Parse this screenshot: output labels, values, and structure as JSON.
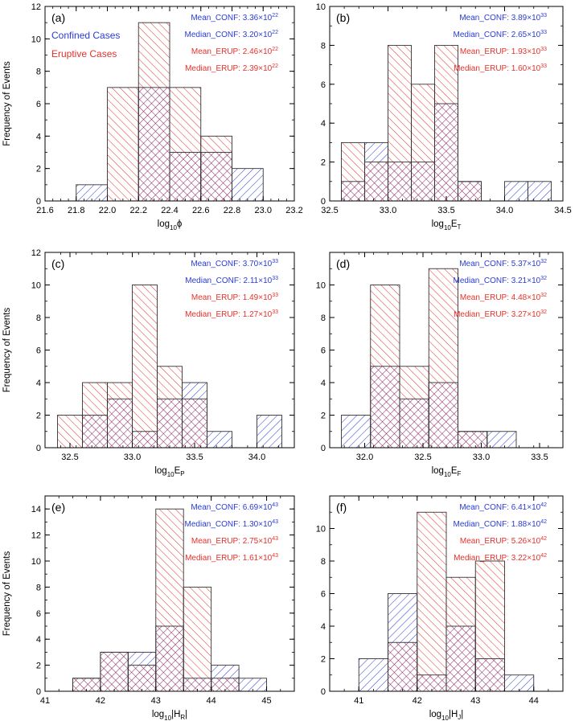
{
  "colors": {
    "confined": "#2a3bd6",
    "eruptive": "#e8302a",
    "overlap": "#8a1b5a",
    "frame": "#000000"
  },
  "legend": {
    "confined": "Confined Cases",
    "eruptive": "Eruptive Cases"
  },
  "chart_data": [
    {
      "type": "bar",
      "panel_label": "(a)",
      "xlabel": {
        "base": "log",
        "sub": "10",
        "rest": "ϕ",
        "sup": "",
        "pipes": false
      },
      "ylabel": "Frequency of Events",
      "xlim": [
        21.6,
        23.2
      ],
      "ylim": [
        0,
        12
      ],
      "xticks": [
        21.6,
        21.8,
        22.0,
        22.2,
        22.4,
        22.6,
        22.8,
        23.0,
        23.2
      ],
      "xtick_labels": [
        "21.6",
        "21.8",
        "22.0",
        "22.2",
        "22.4",
        "22.6",
        "22.8",
        "23.0",
        "23.2"
      ],
      "yticks": [
        0,
        2,
        4,
        6,
        8,
        10,
        12
      ],
      "bin_edges": [
        21.8,
        22.0,
        22.2,
        22.4,
        22.6,
        22.8,
        23.0
      ],
      "series": [
        {
          "name": "Confined Cases",
          "values": [
            1,
            0,
            7,
            3,
            3,
            2
          ]
        },
        {
          "name": "Eruptive Cases",
          "values": [
            0,
            7,
            11,
            7,
            4,
            0
          ]
        }
      ],
      "stats": [
        {
          "label": "Mean_CONF: 3.36×10",
          "exp": "22",
          "color": "confined"
        },
        {
          "label": "Median_CONF: 3.20×10",
          "exp": "22",
          "color": "confined"
        },
        {
          "label": "Mean_ERUP: 2.46×10",
          "exp": "22",
          "color": "eruptive"
        },
        {
          "label": "Median_ERUP: 2.39×10",
          "exp": "22",
          "color": "eruptive"
        }
      ],
      "show_legend": true
    },
    {
      "type": "bar",
      "panel_label": "(b)",
      "xlabel": {
        "base": "log",
        "sub": "10",
        "rest": "E",
        "sup": "T",
        "pipes": false
      },
      "ylabel": "",
      "xlim": [
        32.5,
        34.5
      ],
      "ylim": [
        0,
        10
      ],
      "xticks": [
        32.5,
        33.0,
        33.5,
        34.0,
        34.5
      ],
      "xtick_labels": [
        "32.5",
        "33.0",
        "33.5",
        "34.0",
        "34.5"
      ],
      "yticks": [
        0,
        2,
        4,
        6,
        8,
        10
      ],
      "bin_edges": [
        32.6,
        32.8,
        33.0,
        33.2,
        33.4,
        33.6,
        33.8,
        34.0,
        34.2,
        34.4
      ],
      "series": [
        {
          "name": "Confined Cases",
          "values": [
            1,
            3,
            2,
            2,
            5,
            1,
            0,
            1,
            1
          ]
        },
        {
          "name": "Eruptive Cases",
          "values": [
            3,
            2,
            8,
            6,
            8,
            1,
            0,
            0,
            0
          ]
        }
      ],
      "stats": [
        {
          "label": "Mean_CONF: 3.89×10",
          "exp": "33",
          "color": "confined"
        },
        {
          "label": "Median_CONF: 2.65×10",
          "exp": "33",
          "color": "confined"
        },
        {
          "label": "Mean_ERUP: 1.93×10",
          "exp": "33",
          "color": "eruptive"
        },
        {
          "label": "Median_ERUP: 1.60×10",
          "exp": "33",
          "color": "eruptive"
        }
      ],
      "show_legend": false
    },
    {
      "type": "bar",
      "panel_label": "(c)",
      "xlabel": {
        "base": "log",
        "sub": "10",
        "rest": "E",
        "sup": "P",
        "pipes": false
      },
      "ylabel": "Frequency of Events",
      "xlim": [
        32.3,
        34.3
      ],
      "ylim": [
        0,
        12
      ],
      "xticks": [
        32.5,
        33.0,
        33.5,
        34.0
      ],
      "xtick_labels": [
        "32.5",
        "33.0",
        "33.5",
        "34.0"
      ],
      "yticks": [
        0,
        2,
        4,
        6,
        8,
        10,
        12
      ],
      "bin_edges": [
        32.4,
        32.6,
        32.8,
        33.0,
        33.2,
        33.4,
        33.6,
        33.8,
        34.0,
        34.2
      ],
      "series": [
        {
          "name": "Confined Cases",
          "values": [
            0,
            2,
            3,
            1,
            3,
            4,
            1,
            0,
            2
          ]
        },
        {
          "name": "Eruptive Cases",
          "values": [
            2,
            4,
            4,
            10,
            5,
            3,
            0,
            0,
            0
          ]
        }
      ],
      "stats": [
        {
          "label": "Mean_CONF: 3.70×10",
          "exp": "33",
          "color": "confined"
        },
        {
          "label": "Median_CONF: 2.11×10",
          "exp": "33",
          "color": "confined"
        },
        {
          "label": "Mean_ERUP: 1.49×10",
          "exp": "33",
          "color": "eruptive"
        },
        {
          "label": "Median_ERUP: 1.27×10",
          "exp": "33",
          "color": "eruptive"
        }
      ],
      "show_legend": false
    },
    {
      "type": "bar",
      "panel_label": "(d)",
      "xlabel": {
        "base": "log",
        "sub": "10",
        "rest": "E",
        "sup": "F",
        "pipes": false
      },
      "ylabel": "",
      "xlim": [
        31.7,
        33.7
      ],
      "ylim": [
        0,
        12
      ],
      "xticks": [
        32.0,
        32.5,
        33.0,
        33.5
      ],
      "xtick_labels": [
        "32.0",
        "32.5",
        "33.0",
        "33.5"
      ],
      "yticks": [
        0,
        2,
        4,
        6,
        8,
        10
      ],
      "bin_edges": [
        31.8,
        32.05,
        32.3,
        32.55,
        32.8,
        33.05,
        33.3,
        33.55
      ],
      "series": [
        {
          "name": "Confined Cases",
          "values": [
            2,
            5,
            3,
            4,
            1,
            1,
            0
          ]
        },
        {
          "name": "Eruptive Cases",
          "values": [
            0,
            10,
            5,
            11,
            1,
            0,
            0
          ]
        }
      ],
      "stats": [
        {
          "label": "Mean_CONF: 5.37×10",
          "exp": "32",
          "color": "confined"
        },
        {
          "label": "Median_CONF: 3.21×10",
          "exp": "32",
          "color": "confined"
        },
        {
          "label": "Mean_ERUP: 4.48×10",
          "exp": "32",
          "color": "eruptive"
        },
        {
          "label": "Median_ERUP: 3.27×10",
          "exp": "32",
          "color": "eruptive"
        }
      ],
      "show_legend": false
    },
    {
      "type": "bar",
      "panel_label": "(e)",
      "xlabel": {
        "base": "log",
        "sub": "10",
        "rest": "H",
        "sup": "R",
        "pipes": true
      },
      "ylabel": "Frequency of Events",
      "xlim": [
        41,
        45.5
      ],
      "ylim": [
        0,
        15
      ],
      "xticks": [
        41,
        42,
        43,
        44,
        45
      ],
      "xtick_labels": [
        "41",
        "42",
        "43",
        "44",
        "45"
      ],
      "yticks": [
        0,
        2,
        4,
        6,
        8,
        10,
        12,
        14
      ],
      "bin_edges": [
        41.5,
        42.0,
        42.5,
        43.0,
        43.5,
        44.0,
        44.5,
        45.0
      ],
      "series": [
        {
          "name": "Confined Cases",
          "values": [
            1,
            3,
            3,
            5,
            1,
            2,
            1
          ]
        },
        {
          "name": "Eruptive Cases",
          "values": [
            1,
            3,
            2,
            14,
            8,
            1,
            0
          ]
        }
      ],
      "stats": [
        {
          "label": "Mean_CONF: 6.69×10",
          "exp": "43",
          "color": "confined"
        },
        {
          "label": "Median_CONF: 1.30×10",
          "exp": "43",
          "color": "confined"
        },
        {
          "label": "Mean_ERUP: 2.75×10",
          "exp": "43",
          "color": "eruptive"
        },
        {
          "label": "Median_ERUP: 1.61×10",
          "exp": "43",
          "color": "eruptive"
        }
      ],
      "show_legend": false
    },
    {
      "type": "bar",
      "panel_label": "(f)",
      "xlabel": {
        "base": "log",
        "sub": "10",
        "rest": "H",
        "sup": "J",
        "pipes": true
      },
      "ylabel": "",
      "xlim": [
        40.5,
        44.5
      ],
      "ylim": [
        0,
        12
      ],
      "xticks": [
        41,
        42,
        43,
        44
      ],
      "xtick_labels": [
        "41",
        "42",
        "43",
        "44"
      ],
      "yticks": [
        0,
        2,
        4,
        6,
        8,
        10
      ],
      "bin_edges": [
        41.0,
        41.5,
        42.0,
        42.5,
        43.0,
        43.5,
        44.0
      ],
      "series": [
        {
          "name": "Confined Cases",
          "values": [
            2,
            6,
            1,
            4,
            2,
            1
          ]
        },
        {
          "name": "Eruptive Cases",
          "values": [
            0,
            3,
            11,
            7,
            8,
            0
          ]
        }
      ],
      "stats": [
        {
          "label": "Mean_CONF: 6.41×10",
          "exp": "42",
          "color": "confined"
        },
        {
          "label": "Median_CONF: 1.88×10",
          "exp": "42",
          "color": "confined"
        },
        {
          "label": "Mean_ERUP: 5.26×10",
          "exp": "42",
          "color": "eruptive"
        },
        {
          "label": "Median_ERUP: 3.22×10",
          "exp": "42",
          "color": "eruptive"
        }
      ],
      "show_legend": false
    }
  ]
}
